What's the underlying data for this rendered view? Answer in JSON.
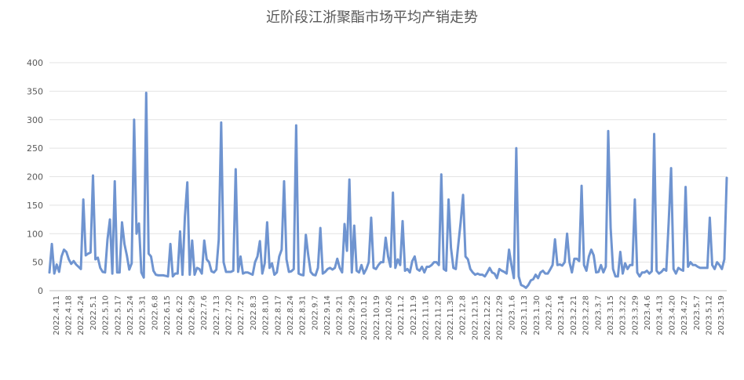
{
  "chart_data": {
    "type": "line",
    "title": "近阶段江浙聚酯市场平均产销走势",
    "xlabel": "",
    "ylabel": "",
    "ylim": [
      0,
      400
    ],
    "yticks": [
      0,
      50,
      100,
      150,
      200,
      250,
      300,
      350,
      400
    ],
    "grid": "horizontal",
    "legend": "none",
    "line_color": "#6f94d0",
    "x_tick_labels": [
      "2022.4.11",
      "2022.4.18",
      "2022.4.24",
      "2022.5.1",
      "2022.5.10",
      "2022.5.17",
      "2022.5.24",
      "2022.5.31",
      "2022.6.8",
      "2022.6.15",
      "2022.6.22",
      "2022.6.29",
      "2022.7.6",
      "2022.7.13",
      "2022.7.20",
      "2022.7.27",
      "2022.8.3",
      "2022.8.10",
      "2022.8.17",
      "2022.8.24",
      "2022.8.31",
      "2022.9.7",
      "2022.9.14",
      "2022.9.21",
      "2022.9.29",
      "2022.10.12",
      "2022.10.19",
      "2022.10.26",
      "2022.11.2",
      "2022.11.9",
      "2022.11.16",
      "2022.11.23",
      "2022.11.30",
      "2022.12.8",
      "2022.12.15",
      "2022.12.22",
      "2022.12.29",
      "2023.1.6",
      "2023.1.13",
      "2023.1.30",
      "2023.2.6",
      "2023.2.14",
      "2023.2.21",
      "2023.2.28",
      "2023.3.7",
      "2023.3.15",
      "2023.3.22",
      "2023.3.29",
      "2023.4.6",
      "2023.4.13",
      "2023.4.20",
      "2023.4.27",
      "2023.5.7",
      "2023.5.12",
      "2023.5.19"
    ],
    "series": [
      {
        "values": [
          32,
          82,
          30,
          46,
          33,
          60,
          72,
          68,
          55,
          47,
          52,
          46,
          42,
          38,
          160,
          62,
          65,
          67,
          202,
          55,
          58,
          40,
          33,
          32,
          90,
          125,
          30,
          192,
          32,
          32,
          120,
          82,
          62,
          37,
          48,
          300,
          100,
          118,
          32,
          23,
          347,
          65,
          60,
          35,
          28,
          27,
          27,
          27,
          26,
          25,
          82,
          25,
          30,
          30,
          104,
          28,
          130,
          190,
          28,
          88,
          28,
          40,
          38,
          30,
          88,
          55,
          50,
          34,
          32,
          37,
          90,
          295,
          50,
          33,
          33,
          33,
          35,
          213,
          33,
          60,
          30,
          32,
          32,
          30,
          28,
          50,
          60,
          87,
          30,
          48,
          120,
          40,
          48,
          28,
          32,
          60,
          72,
          192,
          55,
          33,
          34,
          38,
          290,
          30,
          28,
          27,
          98,
          62,
          33,
          28,
          27,
          40,
          110,
          30,
          33,
          38,
          40,
          37,
          40,
          56,
          40,
          32,
          117,
          70,
          195,
          32,
          114,
          35,
          32,
          45,
          30,
          38,
          50,
          128,
          40,
          38,
          45,
          50,
          50,
          93,
          60,
          42,
          172,
          40,
          55,
          45,
          122,
          35,
          38,
          32,
          52,
          60,
          38,
          35,
          42,
          32,
          42,
          42,
          45,
          50,
          50,
          45,
          204,
          38,
          35,
          160,
          75,
          40,
          38,
          80,
          120,
          168,
          60,
          55,
          38,
          32,
          28,
          30,
          28,
          28,
          25,
          32,
          40,
          32,
          30,
          22,
          38,
          35,
          33,
          30,
          72,
          45,
          22,
          250,
          25,
          10,
          8,
          5,
          10,
          18,
          20,
          28,
          22,
          32,
          35,
          30,
          30,
          37,
          45,
          90,
          45,
          46,
          44,
          50,
          100,
          50,
          32,
          56,
          56,
          52,
          184,
          45,
          35,
          60,
          72,
          62,
          32,
          33,
          45,
          32,
          42,
          280,
          110,
          38,
          25,
          25,
          68,
          30,
          48,
          38,
          45,
          45,
          160,
          32,
          25,
          32,
          32,
          35,
          30,
          34,
          275,
          35,
          30,
          33,
          38,
          35,
          120,
          215,
          38,
          30,
          40,
          37,
          35,
          182,
          42,
          50,
          45,
          45,
          42,
          40,
          40,
          40,
          40,
          128,
          45,
          38,
          50,
          45,
          38,
          55,
          198
        ]
      }
    ]
  }
}
